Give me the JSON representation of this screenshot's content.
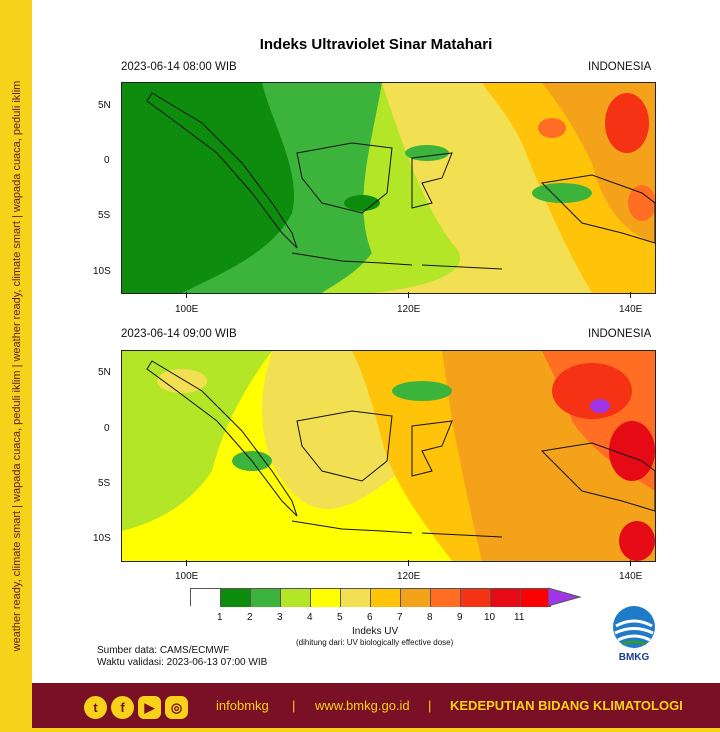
{
  "side_banner": {
    "text": "weather ready, climate smart | wapada cuaca, peduli iklim | weather ready, climate smart | wapada cuaca, peduli iklim"
  },
  "title": "Indeks Ultraviolet Sinar Matahari",
  "maps": [
    {
      "time": "2023-06-14  08:00 WIB",
      "region": "INDONESIA"
    },
    {
      "time": "2023-06-14  09:00 WIB",
      "region": "INDONESIA"
    }
  ],
  "axes": {
    "lat_labels": [
      "5N",
      "0",
      "5S",
      "10S"
    ],
    "lon_labels": [
      "100E",
      "120E",
      "140E"
    ]
  },
  "legend": {
    "title": "Indeks UV",
    "subtitle": "(dihitung dari: UV biologically effective dose)",
    "values": [
      "1",
      "2",
      "3",
      "4",
      "5",
      "6",
      "7",
      "8",
      "9",
      "10",
      "11"
    ],
    "colors": [
      "#ffffff",
      "#0e8c0e",
      "#3cb43c",
      "#b4e628",
      "#ffff00",
      "#f2e052",
      "#ffc40a",
      "#f5a21b",
      "#ff6e22",
      "#f53214",
      "#e60a14",
      "#ff0000",
      "#a037e6"
    ]
  },
  "source": {
    "data": "Sumber data: CAMS/ECMWF",
    "validity": "Waktu validasi: 2023-06-13 07:00 WIB"
  },
  "logo": {
    "text": "BMKG",
    "icon": "bmkg-logo-icon"
  },
  "footer": {
    "handle": "infobmkg",
    "sep1": "|",
    "website": "www.bmkg.go.id",
    "sep2": "|",
    "unit": "KEDEPUTIAN BIDANG KLIMATOLOGI",
    "icons": [
      "twitter-icon",
      "facebook-icon",
      "youtube-icon",
      "instagram-icon"
    ]
  }
}
